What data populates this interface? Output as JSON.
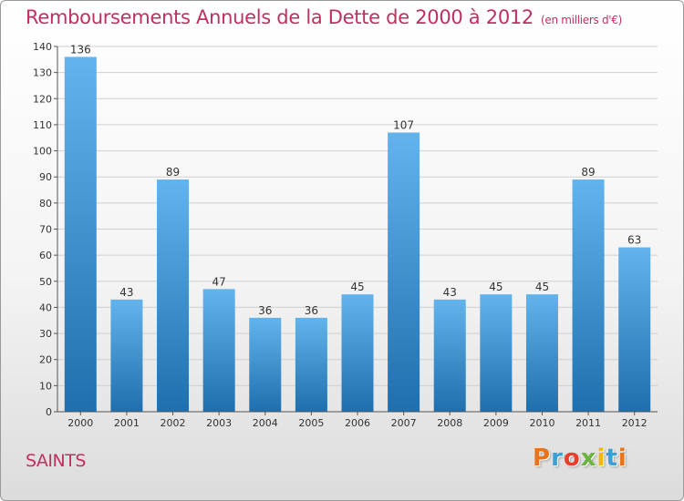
{
  "header": {
    "title": "Remboursements Annuels de la Dette de 2000 à 2012",
    "subtitle": "(en milliers d'€)"
  },
  "footer": {
    "commune": "SAINTS",
    "logo_text": "Proxiti",
    "logo_colors": [
      "#e8731a",
      "#3b9fd8",
      "#e83f2a",
      "#6cb33f",
      "#f2b800",
      "#3b9fd8",
      "#e8731a"
    ]
  },
  "colors": {
    "accent": "#c0305e",
    "bar_top": "#63b3ec",
    "bar_bottom": "#1f6fae",
    "grid": "#d0d0d0"
  },
  "chart_data": {
    "type": "bar",
    "title": "Remboursements Annuels de la Dette de 2000 à 2012",
    "subtitle": "(en milliers d'€)",
    "xlabel": "",
    "ylabel": "",
    "categories": [
      "2000",
      "2001",
      "2002",
      "2003",
      "2004",
      "2005",
      "2006",
      "2007",
      "2008",
      "2009",
      "2010",
      "2011",
      "2012"
    ],
    "values": [
      136,
      43,
      89,
      47,
      36,
      36,
      45,
      107,
      43,
      45,
      45,
      89,
      63
    ],
    "ylim": [
      0,
      140
    ],
    "yticks": [
      0,
      10,
      20,
      30,
      40,
      50,
      60,
      70,
      80,
      90,
      100,
      110,
      120,
      130,
      140
    ],
    "grid": true,
    "data_labels": true
  }
}
